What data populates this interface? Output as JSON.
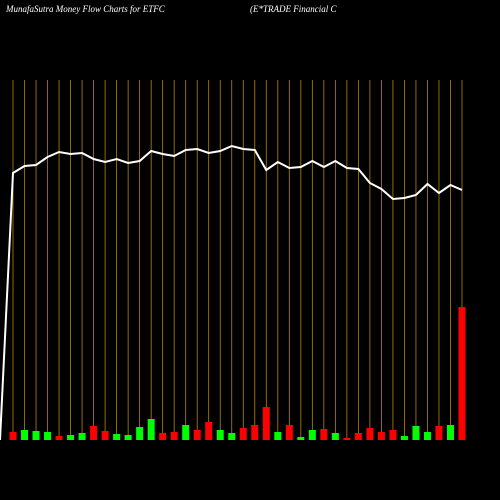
{
  "chart_data": {
    "type": "money-flow",
    "title": "MunafaSutra  Money Flow  Charts for ETFC",
    "subtitle": "(E*TRADE Financial C",
    "categories": [
      null,
      null,
      null,
      null,
      null,
      null,
      null,
      null,
      null,
      null,
      null,
      null,
      null,
      null,
      null,
      null,
      null,
      null,
      null,
      null,
      null,
      null,
      null,
      null,
      null,
      null,
      null,
      null,
      null,
      null,
      null,
      null,
      null,
      null,
      null,
      null,
      null,
      null,
      null,
      null
    ],
    "ylim": [
      0,
      440
    ],
    "line": {
      "color": "#ffffff",
      "values": [
        267,
        274,
        275,
        283,
        288,
        286,
        287,
        281,
        278,
        281,
        277,
        279,
        289,
        286,
        284,
        290,
        291,
        287,
        289,
        294,
        291,
        290,
        270,
        278,
        272,
        273,
        279,
        273,
        279,
        272,
        271,
        257,
        251,
        241,
        242,
        245,
        256,
        247,
        255,
        250
      ]
    },
    "bars": {
      "values": [
        8,
        10,
        9,
        8,
        4,
        5,
        7,
        14,
        9,
        6,
        5,
        13,
        21,
        7,
        8,
        15,
        10,
        18,
        10,
        7,
        12,
        15,
        33,
        8,
        15,
        3,
        10,
        11,
        7,
        2,
        7,
        12,
        8,
        10,
        4,
        14,
        8,
        14,
        15,
        133
      ],
      "colors": [
        "#ff0000",
        "#00ff00",
        "#00ff00",
        "#00ff00",
        "#ff0000",
        "#00ff00",
        "#00ff00",
        "#ff0000",
        "#ff0000",
        "#00ff00",
        "#00ff00",
        "#00ff00",
        "#00ff00",
        "#ff0000",
        "#ff0000",
        "#00ff00",
        "#ff0000",
        "#ff0000",
        "#00ff00",
        "#00ff00",
        "#ff0000",
        "#ff0000",
        "#ff0000",
        "#00ff00",
        "#ff0000",
        "#00ff00",
        "#00ff00",
        "#ff0000",
        "#00ff00",
        "#ff0000",
        "#ff0000",
        "#ff0000",
        "#ff0000",
        "#ff0000",
        "#00ff00",
        "#00ff00",
        "#00ff00",
        "#ff0000",
        "#00ff00",
        "#ff0000"
      ]
    },
    "gridline_color": "#b8860b"
  }
}
